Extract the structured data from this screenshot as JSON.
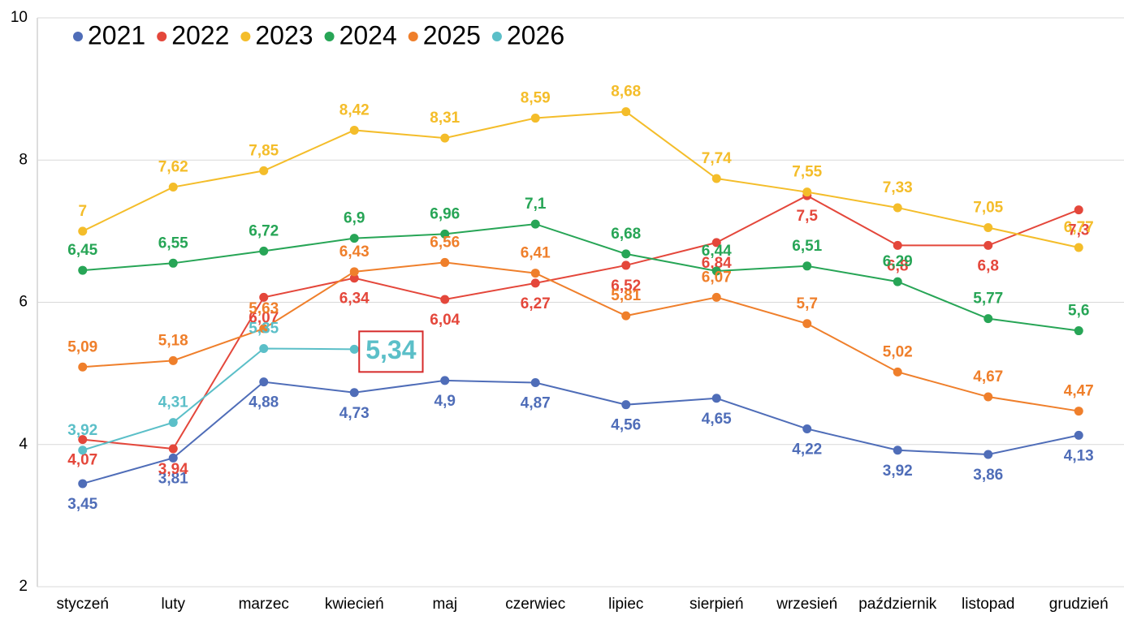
{
  "chart_data": {
    "type": "line",
    "categories": [
      "styczeń",
      "luty",
      "marzec",
      "kwiecień",
      "maj",
      "czerwiec",
      "lipiec",
      "sierpień",
      "wrzesień",
      "październik",
      "listopad",
      "grudzień"
    ],
    "series": [
      {
        "name": "2021",
        "color": "#4f6db8",
        "values": [
          3.45,
          3.81,
          4.88,
          4.73,
          4.9,
          4.87,
          4.56,
          4.65,
          4.22,
          3.92,
          3.86,
          4.13
        ],
        "value_labels": [
          "3,45",
          "3,81",
          "4,88",
          "4,73",
          "4,9",
          "4,87",
          "4,56",
          "4,65",
          "4,22",
          "3,92",
          "3,86",
          "4,13"
        ]
      },
      {
        "name": "2022",
        "color": "#e4473b",
        "values": [
          4.07,
          3.94,
          6.07,
          6.34,
          6.04,
          6.27,
          6.52,
          6.84,
          7.5,
          6.8,
          6.8,
          7.3
        ],
        "value_labels": [
          "4,07",
          "3,94",
          "6,07",
          "6,34",
          "6,04",
          "6,27",
          "6,52",
          "6,84",
          "7,5",
          "6,8",
          "6,8",
          "7,3"
        ]
      },
      {
        "name": "2023",
        "color": "#f4bd2a",
        "values": [
          7,
          7.62,
          7.85,
          8.42,
          8.31,
          8.59,
          8.68,
          7.74,
          7.55,
          7.33,
          7.05,
          6.77
        ],
        "value_labels": [
          "7",
          "7,62",
          "7,85",
          "8,42",
          "8,31",
          "8,59",
          "8,68",
          "7,74",
          "7,55",
          "7,33",
          "7,05",
          "6,77"
        ]
      },
      {
        "name": "2024",
        "color": "#27a556",
        "values": [
          6.45,
          6.55,
          6.72,
          6.9,
          6.96,
          7.1,
          6.68,
          6.44,
          6.51,
          6.29,
          5.77,
          5.6
        ],
        "value_labels": [
          "6,45",
          "6,55",
          "6,72",
          "6,9",
          "6,96",
          "7,1",
          "6,68",
          "6,44",
          "6,51",
          "6,29",
          "5,77",
          "5,6"
        ]
      },
      {
        "name": "2025",
        "color": "#ef7f2b",
        "values": [
          5.09,
          5.18,
          5.63,
          6.43,
          6.56,
          6.41,
          5.81,
          6.07,
          5.7,
          5.02,
          4.67,
          4.47
        ],
        "value_labels": [
          "5,09",
          "5,18",
          "5,63",
          "6,43",
          "6,56",
          "6,41",
          "5,81",
          "6,07",
          "5,7",
          "5,02",
          "4,67",
          "4,47"
        ]
      },
      {
        "name": "2026",
        "color": "#5bbfc8",
        "values": [
          3.92,
          4.31,
          5.35,
          5.34,
          null,
          null,
          null,
          null,
          null,
          null,
          null,
          null
        ],
        "value_labels": [
          "3,92",
          "4,31",
          "5,35",
          "5,34",
          null,
          null,
          null,
          null,
          null,
          null,
          null,
          null
        ]
      }
    ],
    "ylim": [
      2,
      10
    ],
    "yticks": [
      2,
      4,
      6,
      8,
      10
    ],
    "grid": true
  }
}
